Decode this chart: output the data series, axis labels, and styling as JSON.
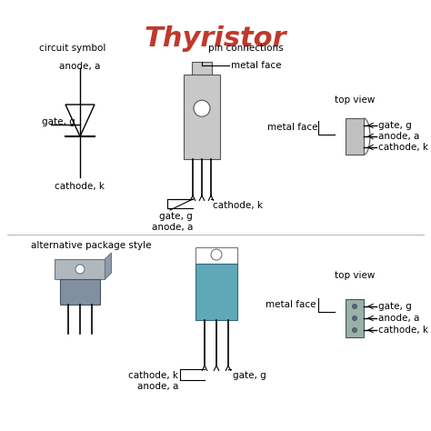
{
  "title": "Thyristor",
  "title_color": "#c0392b",
  "title_fontsize": 22,
  "bg_color": "#ffffff",
  "text_color": "#000000",
  "label_fontsize": 7.5,
  "pkg_color_to92": "#c8c8c8",
  "pkg_color_to220": "#5fa8b8",
  "pkg_edge": "#555555",
  "labels": {
    "circuit_symbol": "circuit symbol",
    "pin_connections": "pin connections",
    "alt_package": "alternative package style",
    "top_view": "top view",
    "metal_face": "metal face",
    "gate_g": "gate, g",
    "anode_a": "anode, a",
    "cathode_k": "cathode, k"
  }
}
